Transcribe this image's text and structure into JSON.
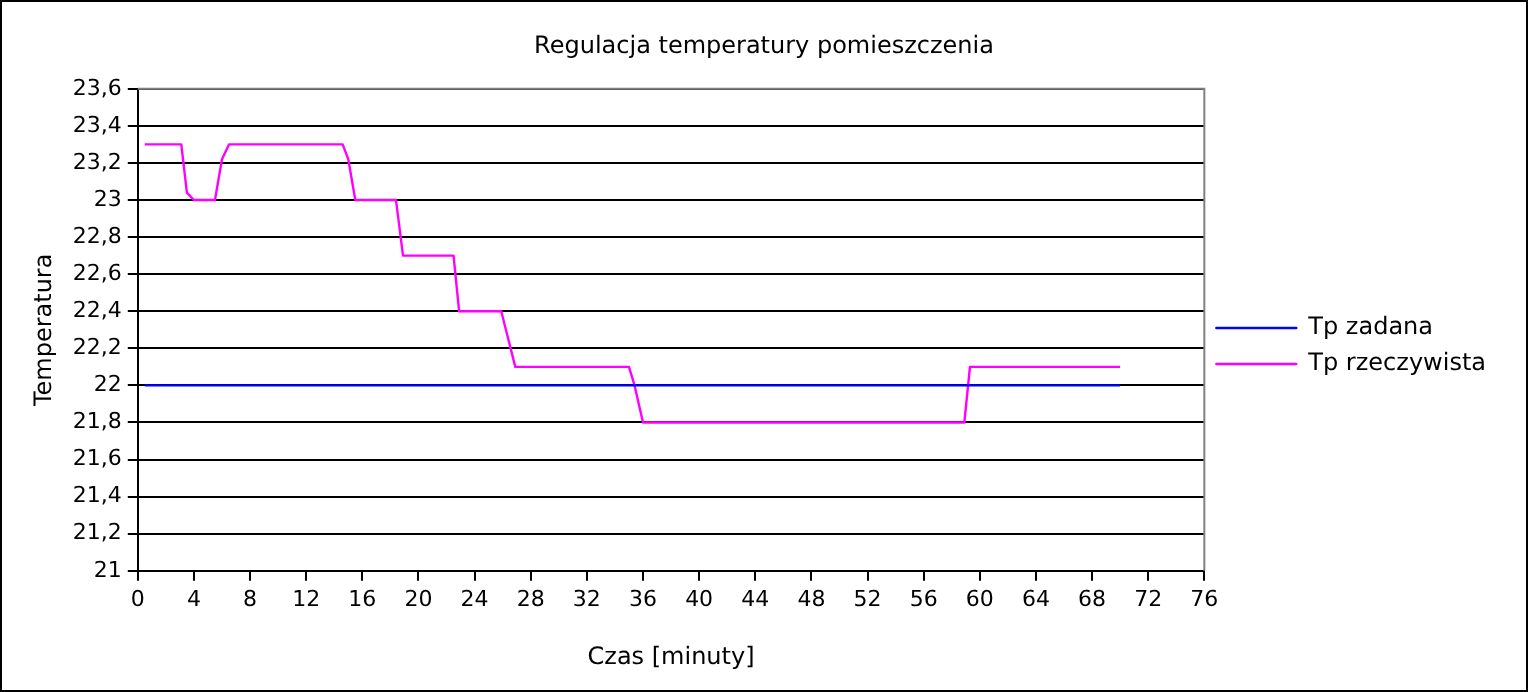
{
  "chart_data": {
    "type": "line",
    "title": "Regulacja temperatury pomieszczenia",
    "xlabel": "Czas [minuty]",
    "ylabel": "Temperatura",
    "xlim": [
      0,
      76
    ],
    "xticks": [
      0,
      4,
      8,
      12,
      16,
      20,
      24,
      28,
      32,
      36,
      40,
      44,
      48,
      52,
      56,
      60,
      64,
      68,
      72,
      76
    ],
    "ylim": [
      21,
      23.6
    ],
    "yticks": [
      {
        "value": 21,
        "label": "21"
      },
      {
        "value": 21.2,
        "label": "21,2"
      },
      {
        "value": 21.4,
        "label": "21,4"
      },
      {
        "value": 21.6,
        "label": "21,6"
      },
      {
        "value": 21.8,
        "label": "21,8"
      },
      {
        "value": 22,
        "label": "22"
      },
      {
        "value": 22.2,
        "label": "22,2"
      },
      {
        "value": 22.4,
        "label": "22,4"
      },
      {
        "value": 22.6,
        "label": "22,6"
      },
      {
        "value": 22.8,
        "label": "22,8"
      },
      {
        "value": 23,
        "label": "23"
      },
      {
        "value": 23.2,
        "label": "23,2"
      },
      {
        "value": 23.4,
        "label": "23,4"
      },
      {
        "value": 23.6,
        "label": "23,6"
      }
    ],
    "grid": "y",
    "legend": "right",
    "marker": "none",
    "line_style": "solid",
    "series": [
      {
        "name": "Tp zadana",
        "color": "#0000ff",
        "x": [
          0.5,
          70
        ],
        "values": [
          22,
          22
        ]
      },
      {
        "name": "Tp rzeczywista",
        "color": "#ff00ff",
        "x": [
          0.5,
          3.1,
          3.5,
          4,
          5.5,
          6,
          6.5,
          14.6,
          15,
          15.5,
          18.4,
          18.9,
          22.5,
          22.9,
          25.9,
          26.9,
          35,
          35.4,
          36,
          58.9,
          59.3,
          70
        ],
        "values": [
          23.3,
          23.3,
          23.04,
          23,
          23,
          23.22,
          23.3,
          23.3,
          23.22,
          23,
          23,
          22.7,
          22.7,
          22.4,
          22.4,
          22.1,
          22.1,
          22,
          21.8,
          21.8,
          22.1,
          22.1
        ]
      }
    ]
  }
}
